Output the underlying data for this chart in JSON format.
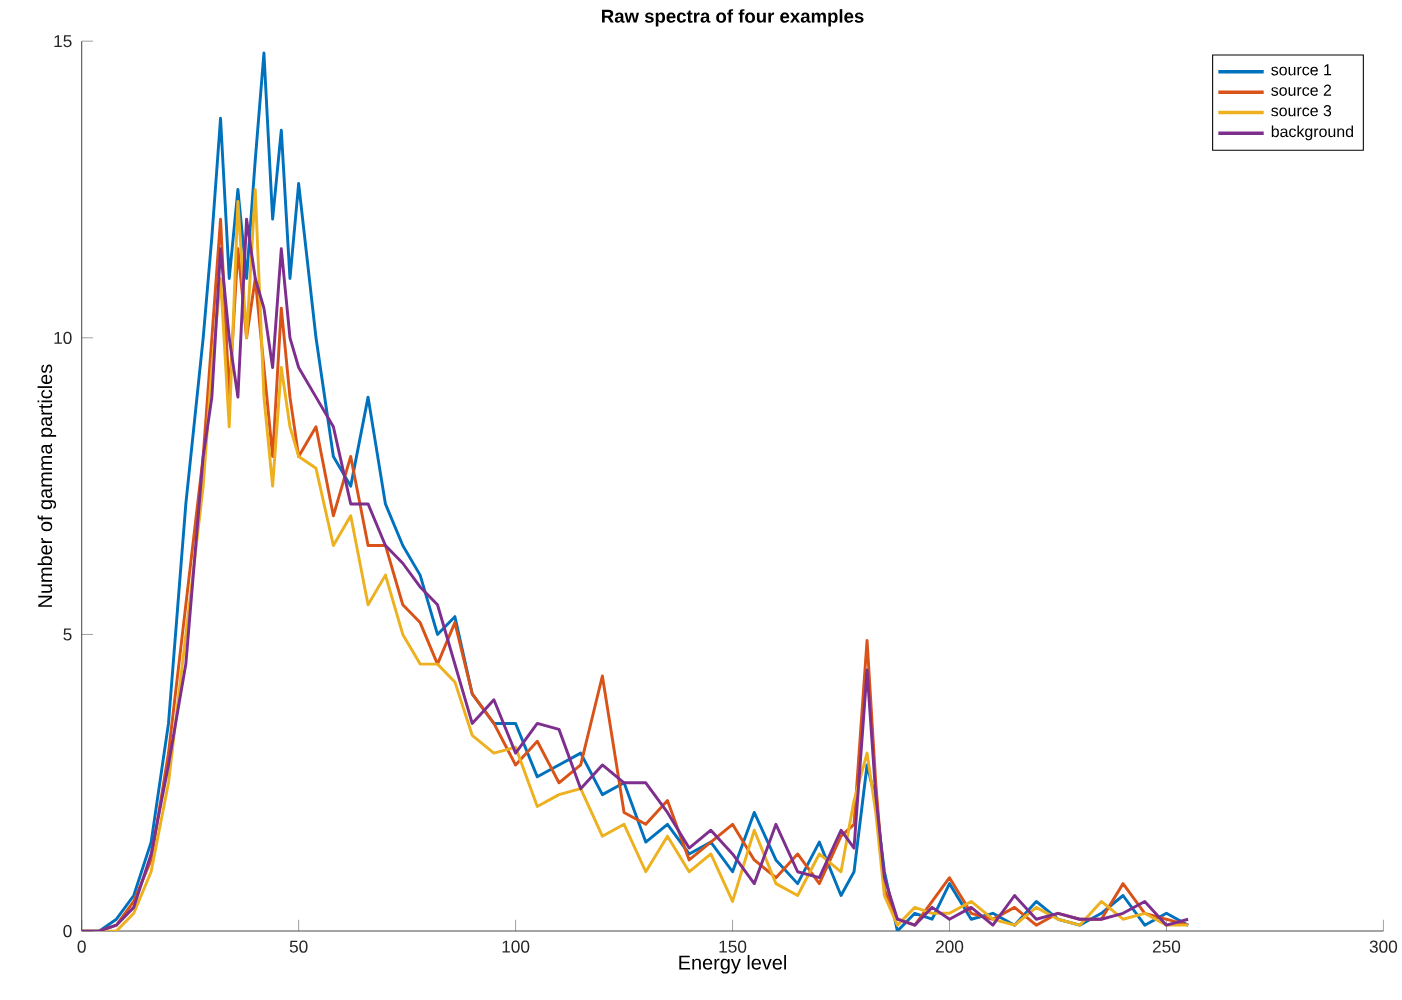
{
  "chart_data": {
    "type": "line",
    "title": "Raw spectra of four examples",
    "xlabel": "Energy level",
    "ylabel": "Number of gamma particles",
    "x": [
      0,
      4,
      8,
      12,
      16,
      20,
      24,
      28,
      30,
      32,
      34,
      36,
      38,
      40,
      42,
      44,
      46,
      48,
      50,
      54,
      58,
      62,
      66,
      70,
      74,
      78,
      82,
      86,
      90,
      95,
      100,
      105,
      110,
      115,
      120,
      125,
      130,
      135,
      140,
      145,
      150,
      155,
      160,
      165,
      170,
      175,
      178,
      181,
      183,
      185,
      188,
      192,
      196,
      200,
      205,
      210,
      215,
      220,
      225,
      230,
      235,
      240,
      245,
      250,
      255
    ],
    "xlim": [
      0,
      300
    ],
    "xticks": [
      0,
      50,
      100,
      150,
      200,
      250,
      300
    ],
    "ylim": [
      0,
      15
    ],
    "yticks": [
      0,
      5,
      10,
      15
    ],
    "grid": false,
    "legend": "top right",
    "marker": "none",
    "line_style": "solid",
    "series": [
      {
        "name": "source 1",
        "color": "#0072bd",
        "values": [
          0,
          0,
          0.2,
          0.6,
          1.5,
          3.5,
          7.2,
          10,
          11.7,
          13.7,
          11,
          12.5,
          11,
          13,
          14.8,
          12,
          13.5,
          11,
          12.6,
          10,
          8,
          7.5,
          9,
          7.2,
          6.5,
          6,
          5,
          5.3,
          4,
          3.5,
          3.5,
          2.6,
          2.8,
          3.0,
          2.3,
          2.5,
          1.5,
          1.8,
          1.3,
          1.5,
          1.0,
          2.0,
          1.2,
          0.8,
          1.5,
          0.6,
          1.0,
          2.8,
          2.2,
          1.0,
          0,
          0.3,
          0.2,
          0.8,
          0.2,
          0.3,
          0.1,
          0.5,
          0.2,
          0.1,
          0.3,
          0.6,
          0.1,
          0.3,
          0.1
        ]
      },
      {
        "name": "source 2",
        "color": "#d95319",
        "values": [
          0,
          0,
          0.1,
          0.5,
          1.2,
          3,
          5.5,
          8,
          10,
          12,
          9,
          11.5,
          10,
          11,
          9.5,
          8,
          10.5,
          9,
          8,
          8.5,
          7,
          8,
          6.5,
          6.5,
          5.5,
          5.2,
          4.5,
          5.2,
          4.0,
          3.5,
          2.8,
          3.2,
          2.5,
          2.8,
          4.3,
          2.0,
          1.8,
          2.2,
          1.2,
          1.5,
          1.8,
          1.2,
          0.9,
          1.3,
          0.8,
          1.6,
          1.8,
          4.9,
          2.5,
          0.7,
          0.2,
          0.1,
          0.5,
          0.9,
          0.3,
          0.2,
          0.4,
          0.1,
          0.3,
          0.2,
          0.2,
          0.8,
          0.3,
          0.2,
          0.1
        ]
      },
      {
        "name": "source 3",
        "color": "#edb120",
        "values": [
          0,
          0,
          0,
          0.3,
          1.0,
          2.5,
          5,
          7.5,
          9.5,
          11,
          8.5,
          12.3,
          10,
          12.5,
          9,
          7.5,
          9.5,
          8.5,
          8,
          7.8,
          6.5,
          7,
          5.5,
          6,
          5,
          4.5,
          4.5,
          4.2,
          3.3,
          3.0,
          3.1,
          2.1,
          2.3,
          2.4,
          1.6,
          1.8,
          1.0,
          1.6,
          1.0,
          1.3,
          0.5,
          1.7,
          0.8,
          0.6,
          1.3,
          1.0,
          2.2,
          3.0,
          2.0,
          0.6,
          0.1,
          0.4,
          0.3,
          0.3,
          0.5,
          0.2,
          0.1,
          0.4,
          0.2,
          0.1,
          0.5,
          0.2,
          0.3,
          0.1,
          0.1
        ]
      },
      {
        "name": "background",
        "color": "#7e2f8e",
        "values": [
          0,
          0,
          0.1,
          0.4,
          1.3,
          2.8,
          4.5,
          8,
          9,
          11.5,
          10,
          9,
          12,
          11,
          10.5,
          9.5,
          11.5,
          10,
          9.5,
          9,
          8.5,
          7.2,
          7.2,
          6.5,
          6.2,
          5.8,
          5.5,
          4.5,
          3.5,
          3.9,
          3.0,
          3.5,
          3.4,
          2.4,
          2.8,
          2.5,
          2.5,
          2.0,
          1.4,
          1.7,
          1.3,
          0.8,
          1.8,
          1.0,
          0.9,
          1.7,
          1.4,
          4.4,
          2.3,
          0.9,
          0.2,
          0.1,
          0.4,
          0.2,
          0.4,
          0.1,
          0.6,
          0.2,
          0.3,
          0.2,
          0.2,
          0.3,
          0.5,
          0.1,
          0.2
        ]
      }
    ]
  }
}
